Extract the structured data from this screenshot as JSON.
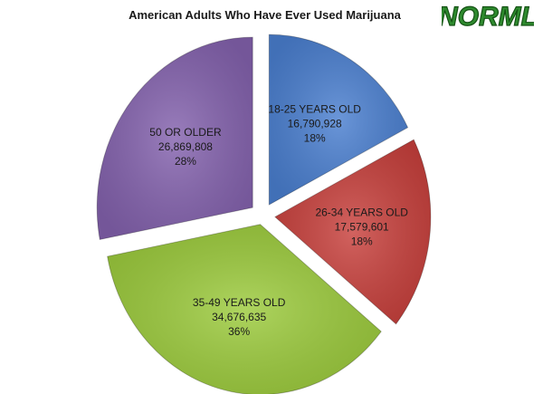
{
  "chart_data": {
    "type": "pie",
    "title": "American Adults Who Have Ever Used Marijuana",
    "exploded": true,
    "slices": [
      {
        "label": "18-25 YEARS OLD",
        "value": 16790928,
        "value_text": "16,790,928",
        "percent_text": "18%",
        "color": "#4a7fd0"
      },
      {
        "label": "26-34 YEARS OLD",
        "value": 17579601,
        "value_text": "17,579,601",
        "percent_text": "18%",
        "color": "#c8403c"
      },
      {
        "label": "35-49 YEARS OLD",
        "value": 34676635,
        "value_text": "34,676,635",
        "percent_text": "36%",
        "color": "#9ccb3c"
      },
      {
        "label": "50 OR OLDER",
        "value": 26869808,
        "value_text": "26,869,808",
        "percent_text": "28%",
        "color": "#8462ae"
      }
    ]
  },
  "logo": {
    "text": "NORML",
    "color": "#2e8b2e"
  }
}
